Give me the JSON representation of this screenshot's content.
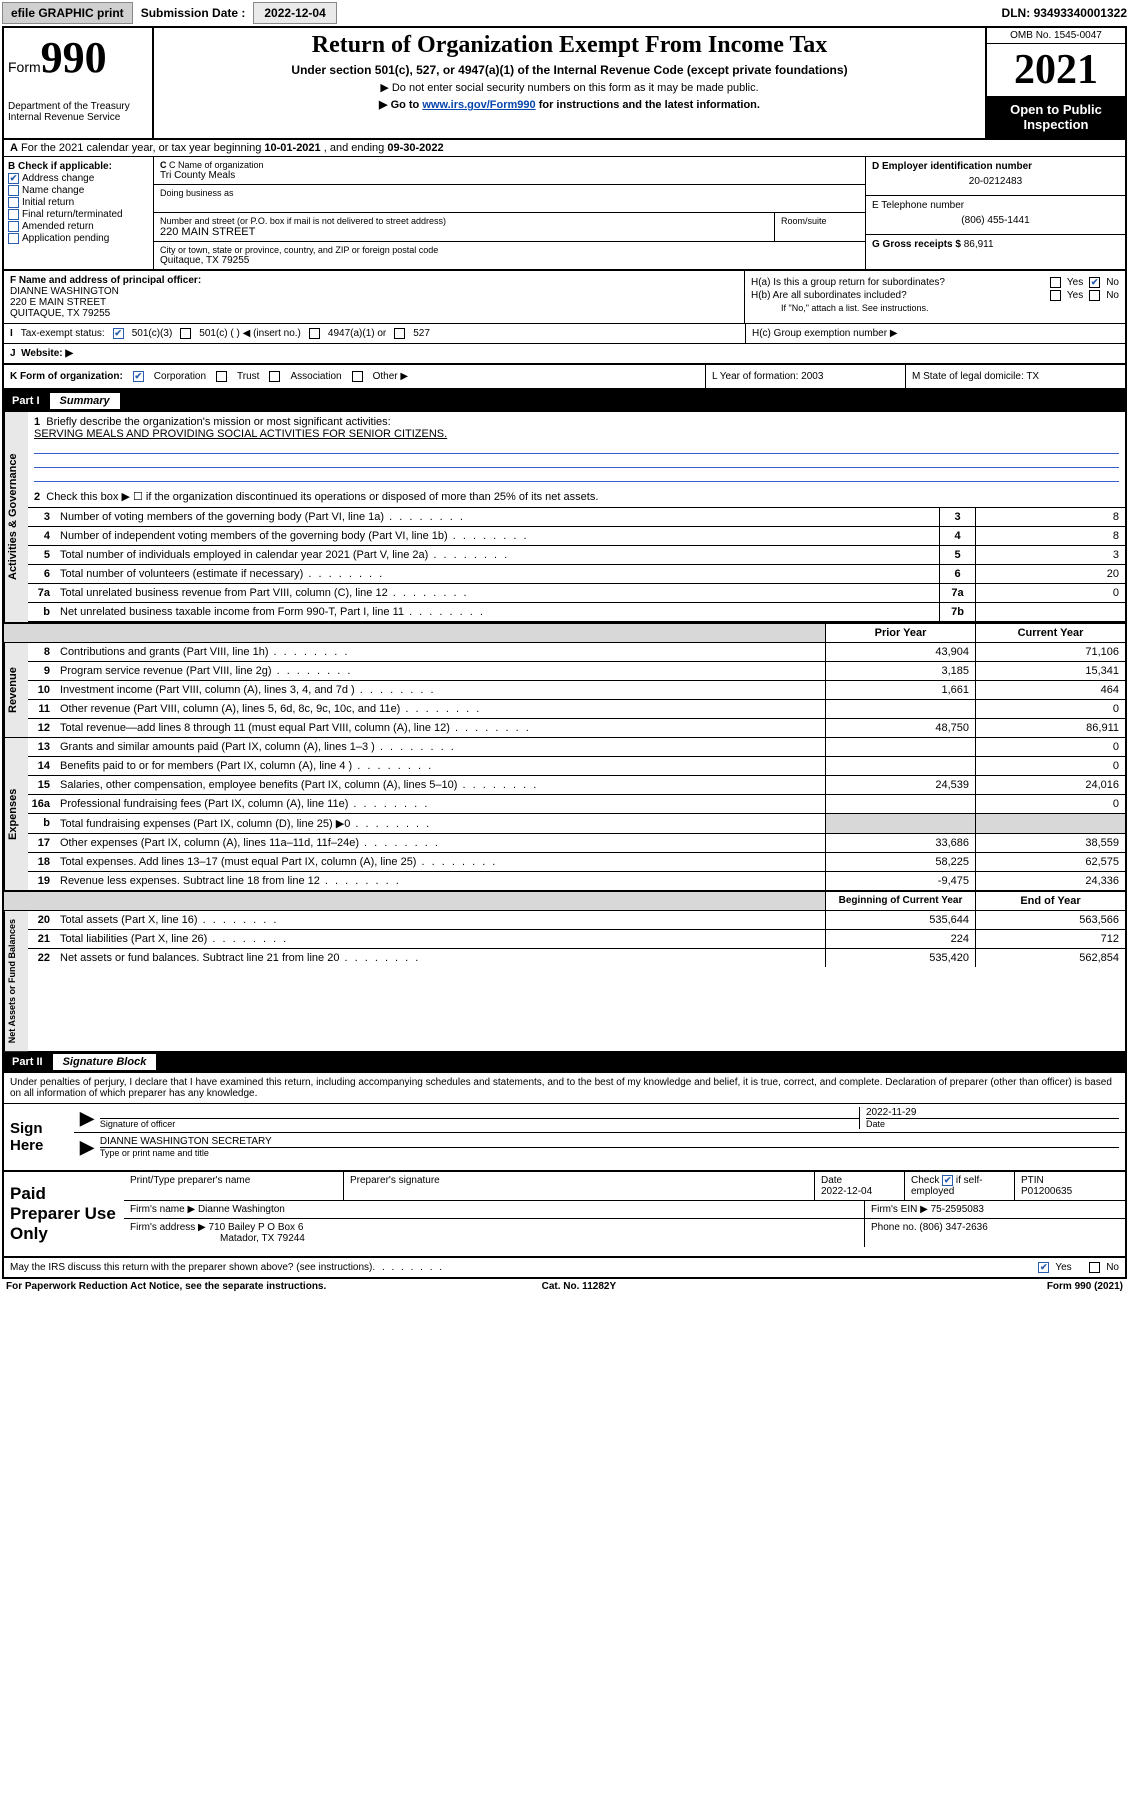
{
  "topbar": {
    "efile": "efile GRAPHIC print",
    "sub_label": "Submission Date :",
    "sub_date": "2022-12-04",
    "dln_label": "DLN:",
    "dln": "93493340001322"
  },
  "header": {
    "form_word": "Form",
    "form_num": "990",
    "dept": "Department of the Treasury\nInternal Revenue Service",
    "title": "Return of Organization Exempt From Income Tax",
    "sub1": "Under section 501(c), 527, or 4947(a)(1) of the Internal Revenue Code (except private foundations)",
    "sub2": "▶ Do not enter social security numbers on this form as it may be made public.",
    "sub3_pre": "▶ Go to ",
    "sub3_link": "www.irs.gov/Form990",
    "sub3_post": " for instructions and the latest information.",
    "omb": "OMB No. 1545-0047",
    "year": "2021",
    "open": "Open to Public Inspection"
  },
  "lineA": {
    "pre": "For the 2021 calendar year, or tax year beginning ",
    "begin": "10-01-2021",
    "mid": " , and ending ",
    "end": "09-30-2022"
  },
  "colB": {
    "label": "B Check if applicable:",
    "items": [
      "Address change",
      "Name change",
      "Initial return",
      "Final return/terminated",
      "Amended return",
      "Application pending"
    ],
    "checked_idx": 0
  },
  "colC": {
    "name_lab": "C Name of organization",
    "name": "Tri County Meals",
    "dba_lab": "Doing business as",
    "addr_lab": "Number and street (or P.O. box if mail is not delivered to street address)",
    "addr": "220 MAIN STREET",
    "room_lab": "Room/suite",
    "city_lab": "City or town, state or province, country, and ZIP or foreign postal code",
    "city": "Quitaque, TX  79255"
  },
  "colD": {
    "ein_lab": "D Employer identification number",
    "ein": "20-0212483",
    "tel_lab": "E Telephone number",
    "tel": "(806) 455-1441",
    "gross_lab": "G Gross receipts $",
    "gross": "86,911"
  },
  "colF": {
    "lab": "F Name and address of principal officer:",
    "name": "DIANNE WASHINGTON",
    "addr1": "220 E MAIN STREET",
    "addr2": "QUITAQUE, TX  79255"
  },
  "colH": {
    "ha": "H(a)  Is this a group return for subordinates?",
    "hb": "H(b)  Are all subordinates included?",
    "hb_note": "If \"No,\" attach a list. See instructions.",
    "hc": "H(c)  Group exemption number ▶",
    "yes": "Yes",
    "no": "No"
  },
  "rowI": {
    "lab": "Tax-exempt status:",
    "opts": [
      "501(c)(3)",
      "501(c) (  ) ◀ (insert no.)",
      "4947(a)(1) or",
      "527"
    ]
  },
  "rowJ": {
    "lab": "Website: ▶"
  },
  "rowK": {
    "lab": "K Form of organization:",
    "opts": [
      "Corporation",
      "Trust",
      "Association",
      "Other ▶"
    ],
    "l": "L Year of formation: 2003",
    "m": "M State of legal domicile: TX"
  },
  "part1": {
    "num": "Part I",
    "title": "Summary",
    "l1": "Briefly describe the organization's mission or most significant activities:",
    "mission": "SERVING MEALS AND PROVIDING SOCIAL ACTIVITIES FOR SENIOR CITIZENS.",
    "l2": "Check this box ▶ ☐  if the organization discontinued its operations or disposed of more than 25% of its net assets.",
    "rows_gov": [
      {
        "n": "3",
        "t": "Number of voting members of the governing body (Part VI, line 1a)",
        "box": "3",
        "v": "8"
      },
      {
        "n": "4",
        "t": "Number of independent voting members of the governing body (Part VI, line 1b)",
        "box": "4",
        "v": "8"
      },
      {
        "n": "5",
        "t": "Total number of individuals employed in calendar year 2021 (Part V, line 2a)",
        "box": "5",
        "v": "3"
      },
      {
        "n": "6",
        "t": "Total number of volunteers (estimate if necessary)",
        "box": "6",
        "v": "20"
      },
      {
        "n": "7a",
        "t": "Total unrelated business revenue from Part VIII, column (C), line 12",
        "box": "7a",
        "v": "0"
      },
      {
        "n": "b",
        "t": "Net unrelated business taxable income from Form 990-T, Part I, line 11",
        "box": "7b",
        "v": ""
      }
    ],
    "hdr_prior": "Prior Year",
    "hdr_curr": "Current Year",
    "rows_rev": [
      {
        "n": "8",
        "t": "Contributions and grants (Part VIII, line 1h)",
        "p": "43,904",
        "c": "71,106"
      },
      {
        "n": "9",
        "t": "Program service revenue (Part VIII, line 2g)",
        "p": "3,185",
        "c": "15,341"
      },
      {
        "n": "10",
        "t": "Investment income (Part VIII, column (A), lines 3, 4, and 7d )",
        "p": "1,661",
        "c": "464"
      },
      {
        "n": "11",
        "t": "Other revenue (Part VIII, column (A), lines 5, 6d, 8c, 9c, 10c, and 11e)",
        "p": "",
        "c": "0"
      },
      {
        "n": "12",
        "t": "Total revenue—add lines 8 through 11 (must equal Part VIII, column (A), line 12)",
        "p": "48,750",
        "c": "86,911"
      }
    ],
    "rows_exp": [
      {
        "n": "13",
        "t": "Grants and similar amounts paid (Part IX, column (A), lines 1–3 )",
        "p": "",
        "c": "0"
      },
      {
        "n": "14",
        "t": "Benefits paid to or for members (Part IX, column (A), line 4 )",
        "p": "",
        "c": "0"
      },
      {
        "n": "15",
        "t": "Salaries, other compensation, employee benefits (Part IX, column (A), lines 5–10)",
        "p": "24,539",
        "c": "24,016"
      },
      {
        "n": "16a",
        "t": "Professional fundraising fees (Part IX, column (A), line 11e)",
        "p": "",
        "c": "0"
      },
      {
        "n": "b",
        "t": "Total fundraising expenses (Part IX, column (D), line 25) ▶0",
        "p": "SHADE",
        "c": "SHADE"
      },
      {
        "n": "17",
        "t": "Other expenses (Part IX, column (A), lines 11a–11d, 11f–24e)",
        "p": "33,686",
        "c": "38,559"
      },
      {
        "n": "18",
        "t": "Total expenses. Add lines 13–17 (must equal Part IX, column (A), line 25)",
        "p": "58,225",
        "c": "62,575"
      },
      {
        "n": "19",
        "t": "Revenue less expenses. Subtract line 18 from line 12",
        "p": "-9,475",
        "c": "24,336"
      }
    ],
    "hdr_beg": "Beginning of Current Year",
    "hdr_end": "End of Year",
    "rows_net": [
      {
        "n": "20",
        "t": "Total assets (Part X, line 16)",
        "p": "535,644",
        "c": "563,566"
      },
      {
        "n": "21",
        "t": "Total liabilities (Part X, line 26)",
        "p": "224",
        "c": "712"
      },
      {
        "n": "22",
        "t": "Net assets or fund balances. Subtract line 21 from line 20",
        "p": "535,420",
        "c": "562,854"
      }
    ],
    "tabs": {
      "gov": "Activities & Governance",
      "rev": "Revenue",
      "exp": "Expenses",
      "net": "Net Assets or Fund Balances"
    }
  },
  "part2": {
    "num": "Part II",
    "title": "Signature Block",
    "note": "Under penalties of perjury, I declare that I have examined this return, including accompanying schedules and statements, and to the best of my knowledge and belief, it is true, correct, and complete. Declaration of preparer (other than officer) is based on all information of which preparer has any knowledge.",
    "sign_here": "Sign Here",
    "sig_of_officer": "Signature of officer",
    "date_lab": "Date",
    "date": "2022-11-29",
    "officer": "DIANNE WASHINGTON SECRETARY",
    "officer_lab": "Type or print name and title",
    "paid": "Paid Preparer Use Only",
    "pt_name_lab": "Print/Type preparer's name",
    "pt_sig_lab": "Preparer's signature",
    "pt_date_lab": "Date",
    "pt_date": "2022-12-04",
    "pt_check": "Check ☑ if self-employed",
    "ptin_lab": "PTIN",
    "ptin": "P01200635",
    "firm_name_lab": "Firm's name   ▶",
    "firm_name": "Dianne Washington",
    "firm_ein_lab": "Firm's EIN ▶",
    "firm_ein": "75-2595083",
    "firm_addr_lab": "Firm's address ▶",
    "firm_addr1": "710 Bailey P O Box 6",
    "firm_addr2": "Matador, TX  79244",
    "firm_phone_lab": "Phone no.",
    "firm_phone": "(806) 347-2636",
    "may_irs": "May the IRS discuss this return with the preparer shown above? (see instructions)",
    "yes": "Yes",
    "no": "No"
  },
  "footer": {
    "pra": "For Paperwork Reduction Act Notice, see the separate instructions.",
    "cat": "Cat. No. 11282Y",
    "form": "Form 990 (2021)"
  }
}
